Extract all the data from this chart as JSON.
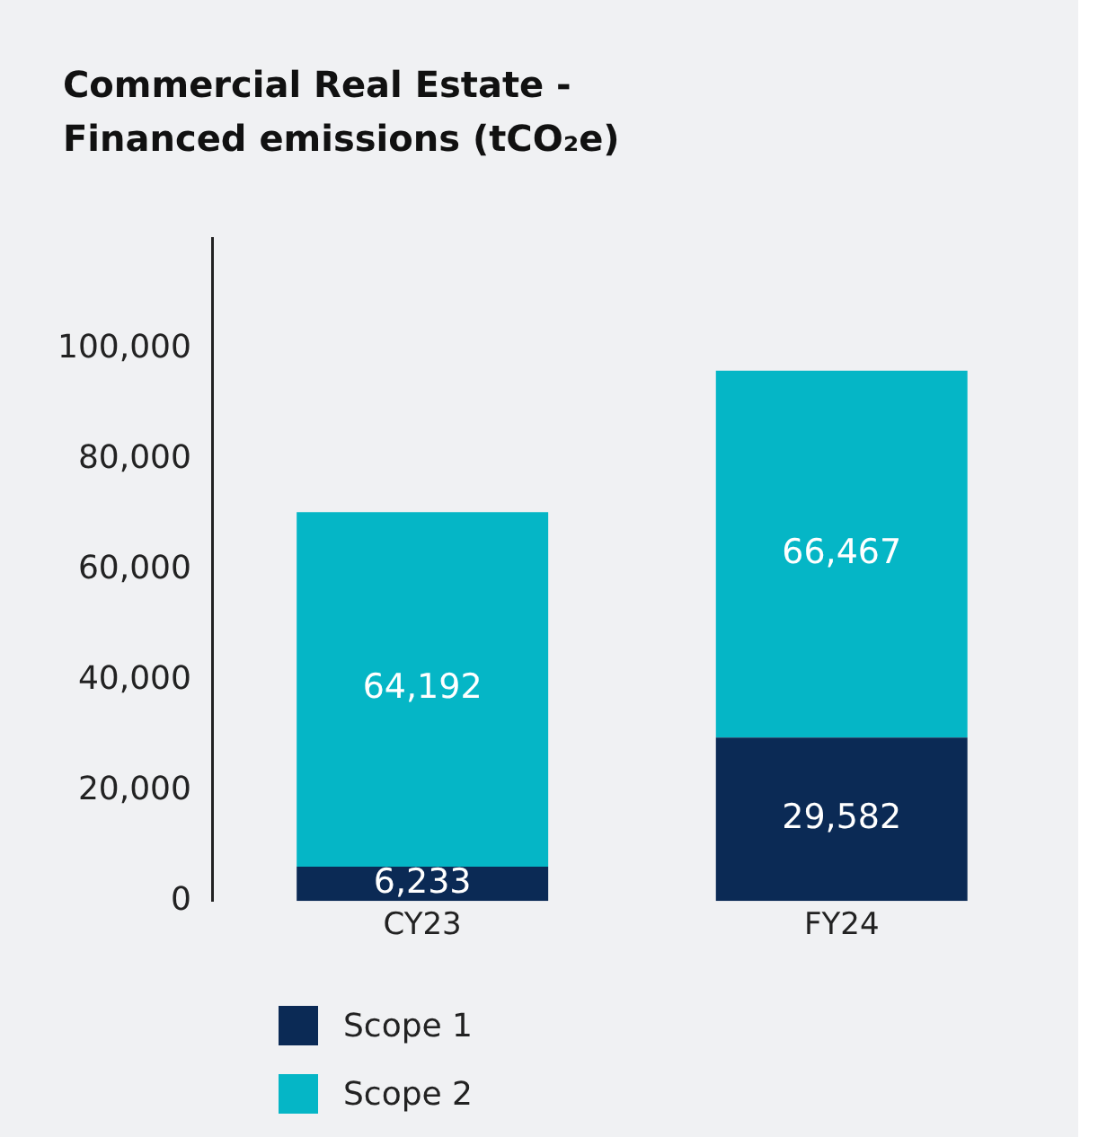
{
  "chart_data": {
    "type": "bar",
    "title": "Commercial Real Estate -\nFinanced emissions (tCO₂e)",
    "categories": [
      "CY23",
      "FY24"
    ],
    "series": [
      {
        "name": "Scope 1",
        "color": "#0b2a55",
        "values": [
          6233,
          29582
        ],
        "value_labels": [
          "6,233",
          "29,582"
        ]
      },
      {
        "name": "Scope 2",
        "color": "#05b6c6",
        "values": [
          64192,
          66467
        ],
        "value_labels": [
          "64,192",
          "66,467"
        ]
      }
    ],
    "stacked": true,
    "ylim": [
      0,
      120000
    ],
    "yticks": [
      0,
      {
        "value": 20000,
        "label": "20,000"
      },
      {
        "value": 40000,
        "label": "40,000"
      },
      {
        "value": 60000,
        "label": "60,000"
      },
      {
        "value": 80000,
        "label": "80,000"
      },
      {
        "value": 100000,
        "label": "100,000"
      }
    ],
    "grid": false,
    "legend": "bottom"
  }
}
